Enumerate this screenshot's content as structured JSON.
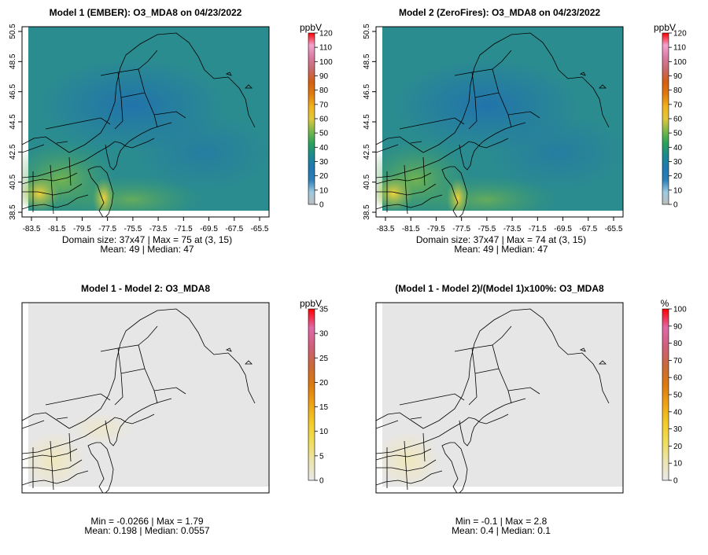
{
  "palette": {
    "abs": [
      "#bdbdbd",
      "#9ecae1",
      "#2c7fb8",
      "#1f78b4",
      "#1b8a8f",
      "#2aa25a",
      "#7cb84a",
      "#e1c73b",
      "#f0b21e",
      "#e07b10",
      "#d55e10",
      "#c86a6a",
      "#d97aa2",
      "#f2a3cf",
      "#ff0000"
    ],
    "diff": [
      "#e9e9e9",
      "#ece4b0",
      "#f0de5b",
      "#f3cc2a",
      "#eea317",
      "#dd7a0f",
      "#c96a3a",
      "#cf5f7a",
      "#e06aa8",
      "#ff0000"
    ],
    "pct": [
      "#e9e9e9",
      "#ece4b0",
      "#f0de5b",
      "#f3cc2a",
      "#eea317",
      "#dd7a0f",
      "#c96a3a",
      "#cf5f7a",
      "#e06aa8",
      "#ff0000"
    ],
    "map_bg_model": "#2b8c8f",
    "map_bg_diff": "#e6e6e6"
  },
  "chart_data": [
    {
      "type": "heatmap",
      "title": "Model 1 (EMBER): O3_MDA8 on 04/23/2022",
      "units": "ppbV",
      "colorbar_ticks": [
        "0",
        "10",
        "20",
        "30",
        "40",
        "50",
        "60",
        "70",
        "80",
        "90",
        "100",
        "110",
        "120"
      ],
      "colorbar_range": [
        0,
        120
      ],
      "xticks": [
        "-83.5",
        "-81.5",
        "-79.5",
        "-77.5",
        "-75.5",
        "-73.5",
        "-71.5",
        "-69.5",
        "-67.5",
        "-65.5"
      ],
      "yticks": [
        "38.5",
        "40.5",
        "42.5",
        "44.5",
        "46.5",
        "48.5",
        "50.5"
      ],
      "stats_line1": "Domain size: 37x47 | Max = 75 at (3, 15)",
      "stats_line2": "Mean: 49 |  Median: 47",
      "domain": {
        "cols": 37,
        "rows": 47
      },
      "max": 75,
      "mean": 49,
      "median": 47
    },
    {
      "type": "heatmap",
      "title": "Model 2 (ZeroFires): O3_MDA8 on 04/23/2022",
      "units": "ppbV",
      "colorbar_ticks": [
        "0",
        "10",
        "20",
        "30",
        "40",
        "50",
        "60",
        "70",
        "80",
        "90",
        "100",
        "110",
        "120"
      ],
      "colorbar_range": [
        0,
        120
      ],
      "xticks": [
        "-83.5",
        "-81.5",
        "-79.5",
        "-77.5",
        "-75.5",
        "-73.5",
        "-71.5",
        "-69.5",
        "-67.5",
        "-65.5"
      ],
      "yticks": [
        "38.5",
        "40.5",
        "42.5",
        "44.5",
        "46.5",
        "48.5",
        "50.5"
      ],
      "stats_line1": "Domain size: 37x47 | Max = 74 at (3, 15)",
      "stats_line2": "Mean: 49 |  Median: 47",
      "domain": {
        "cols": 37,
        "rows": 47
      },
      "max": 74,
      "mean": 49,
      "median": 47
    },
    {
      "type": "heatmap",
      "title": "Model 1 - Model 2: O3_MDA8",
      "units": "ppbV",
      "colorbar_ticks": [
        "0",
        "5",
        "10",
        "15",
        "20",
        "25",
        "30",
        "35"
      ],
      "colorbar_range": [
        0,
        35
      ],
      "stats_line1": "Min = -0.0266 | Max = 1.79",
      "stats_line2": "Mean: 0.198 |  Median: 0.0557",
      "min": -0.0266,
      "max": 1.79,
      "mean": 0.198,
      "median": 0.0557
    },
    {
      "type": "heatmap",
      "title": "(Model 1 - Model 2)/(Model 1)x100%: O3_MDA8",
      "units": "%",
      "colorbar_ticks": [
        "0",
        "10",
        "20",
        "30",
        "40",
        "50",
        "60",
        "70",
        "80",
        "90",
        "100"
      ],
      "colorbar_range": [
        0,
        100
      ],
      "stats_line1": "Min = -0.1 | Max = 2.8",
      "stats_line2": "Mean: 0.4 |  Median: 0.1",
      "min": -0.1,
      "max": 2.8,
      "mean": 0.4,
      "median": 0.1
    }
  ]
}
